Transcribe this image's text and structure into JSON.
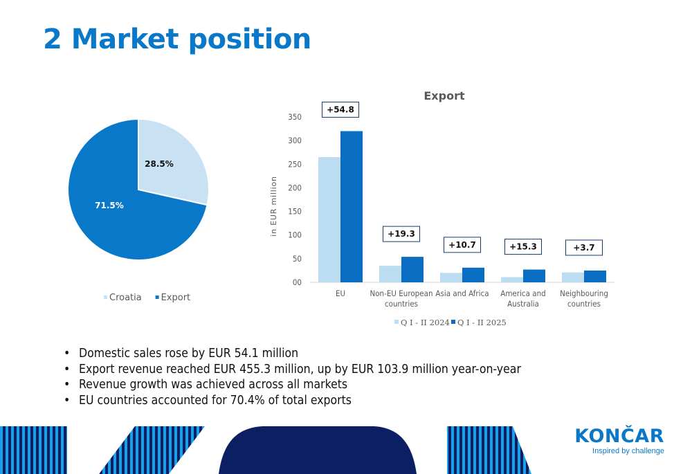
{
  "page": {
    "title": "2 Market position"
  },
  "chart_data": [
    {
      "type": "pie",
      "slices": [
        {
          "name": "Croatia",
          "value": 28.5,
          "label": "28.5%",
          "color": "#c9e2f3"
        },
        {
          "name": "Export",
          "value": 71.5,
          "label": "71.5%",
          "color": "#0a78c8"
        }
      ],
      "legend": [
        "Croatia",
        "Export"
      ],
      "legend_position": "bottom"
    },
    {
      "type": "bar",
      "title": "Export",
      "ylabel": "in EUR million",
      "categories": [
        "EU",
        "Non-EU European countries",
        "Asia and Africa",
        "America and Australia",
        "Neighbouring countries"
      ],
      "category_lines": [
        [
          "EU"
        ],
        [
          "Non-EU European",
          "countries"
        ],
        [
          "Asia and Africa"
        ],
        [
          "America and",
          "Australia"
        ],
        [
          "Neighbouring",
          "countries"
        ]
      ],
      "series": [
        {
          "name": "Q I - II 2024",
          "values": [
            265,
            35,
            20,
            11,
            21
          ],
          "color": "#bcdcf1"
        },
        {
          "name": "Q I - II 2025",
          "values": [
            320,
            54,
            31,
            27,
            25
          ],
          "color": "#0a6fc2"
        }
      ],
      "differences": [
        "+54.8",
        "+19.3",
        "+10.7",
        "+15.3",
        "+3.7"
      ],
      "ylim": [
        0,
        350
      ],
      "yticks": [
        0,
        50,
        100,
        150,
        200,
        250,
        300,
        350
      ],
      "ytick_labels": [
        "00",
        "50",
        "100",
        "150",
        "200",
        "250",
        "300",
        "350"
      ],
      "grid": false,
      "legend_position": "bottom"
    }
  ],
  "bullets": [
    "Domestic sales rose by EUR 54.1 million",
    "Export revenue reached EUR 455.3 million, up by EUR 103.9 million year-on-year",
    "Revenue growth was achieved across all markets",
    "EU countries accounted for 70.4% of total exports"
  ],
  "logo": {
    "name": "KONČAR",
    "tagline": "Inspired by challenge",
    "color": "#0a78c8"
  },
  "footer": {
    "stripe_colors": [
      "#1aa0e6",
      "#0c1f63"
    ]
  }
}
